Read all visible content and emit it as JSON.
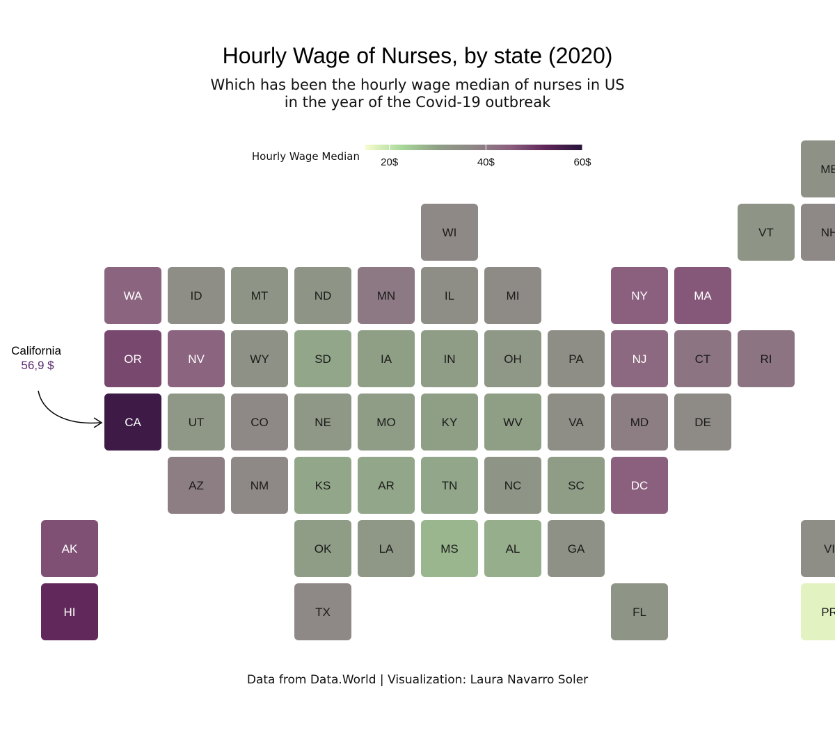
{
  "title": "Hourly Wage of Nurses, by state (2020)",
  "subtitle_line1": "Which has been the hourly wage median of nurses in US",
  "subtitle_line2": "in the year of the Covid-19 outbreak",
  "caption": "Data from Data.World | Visualization: Laura Navarro Soler",
  "legend": {
    "title": "Hourly Wage Median",
    "ticks": [
      {
        "value": 20,
        "label": "20$"
      },
      {
        "value": 40,
        "label": "40$"
      },
      {
        "value": 60,
        "label": "60$"
      }
    ],
    "range": [
      15,
      60
    ],
    "colors": [
      "#f7fccf",
      "#a8d89a",
      "#8f9f86",
      "#8e8686",
      "#8b5f7e",
      "#5e2558",
      "#26143a"
    ]
  },
  "annotation": {
    "label": "California",
    "value": "56,9 $",
    "value_color": "#5b2a6e"
  },
  "chart_data": {
    "type": "heatmap",
    "title": "Hourly Wage of Nurses, by state (2020)",
    "value_unit": "$ per hour",
    "tiles": [
      {
        "state": "ME",
        "col": 12,
        "row": 0,
        "value": 34
      },
      {
        "state": "WI",
        "col": 6,
        "row": 1,
        "value": 37
      },
      {
        "state": "VT",
        "col": 11,
        "row": 1,
        "value": 33
      },
      {
        "state": "NH",
        "col": 12,
        "row": 1,
        "value": 37
      },
      {
        "state": "WA",
        "col": 1,
        "row": 2,
        "value": 44
      },
      {
        "state": "ID",
        "col": 2,
        "row": 2,
        "value": 35
      },
      {
        "state": "MT",
        "col": 3,
        "row": 2,
        "value": 33
      },
      {
        "state": "ND",
        "col": 4,
        "row": 2,
        "value": 33
      },
      {
        "state": "MN",
        "col": 5,
        "row": 2,
        "value": 40
      },
      {
        "state": "IL",
        "col": 6,
        "row": 2,
        "value": 35
      },
      {
        "state": "MI",
        "col": 7,
        "row": 2,
        "value": 36
      },
      {
        "state": "NY",
        "col": 9,
        "row": 2,
        "value": 45
      },
      {
        "state": "MA",
        "col": 10,
        "row": 2,
        "value": 46
      },
      {
        "state": "OR",
        "col": 1,
        "row": 3,
        "value": 48
      },
      {
        "state": "NV",
        "col": 2,
        "row": 3,
        "value": 44
      },
      {
        "state": "WY",
        "col": 3,
        "row": 3,
        "value": 34
      },
      {
        "state": "SD",
        "col": 4,
        "row": 3,
        "value": 29
      },
      {
        "state": "IA",
        "col": 5,
        "row": 3,
        "value": 30
      },
      {
        "state": "IN",
        "col": 6,
        "row": 3,
        "value": 31
      },
      {
        "state": "OH",
        "col": 7,
        "row": 3,
        "value": 32
      },
      {
        "state": "PA",
        "col": 8,
        "row": 3,
        "value": 35
      },
      {
        "state": "NJ",
        "col": 9,
        "row": 3,
        "value": 43
      },
      {
        "state": "CT",
        "col": 10,
        "row": 3,
        "value": 41
      },
      {
        "state": "RI",
        "col": 11,
        "row": 3,
        "value": 41
      },
      {
        "state": "CA",
        "col": 1,
        "row": 4,
        "value": 56.9
      },
      {
        "state": "UT",
        "col": 2,
        "row": 4,
        "value": 32
      },
      {
        "state": "CO",
        "col": 3,
        "row": 4,
        "value": 37
      },
      {
        "state": "NE",
        "col": 4,
        "row": 4,
        "value": 32
      },
      {
        "state": "MO",
        "col": 5,
        "row": 4,
        "value": 31
      },
      {
        "state": "KY",
        "col": 6,
        "row": 4,
        "value": 30
      },
      {
        "state": "WV",
        "col": 7,
        "row": 4,
        "value": 30
      },
      {
        "state": "VA",
        "col": 8,
        "row": 4,
        "value": 35
      },
      {
        "state": "MD",
        "col": 9,
        "row": 4,
        "value": 39
      },
      {
        "state": "DE",
        "col": 10,
        "row": 4,
        "value": 36
      },
      {
        "state": "AZ",
        "col": 2,
        "row": 5,
        "value": 39
      },
      {
        "state": "NM",
        "col": 3,
        "row": 5,
        "value": 37
      },
      {
        "state": "KS",
        "col": 4,
        "row": 5,
        "value": 29
      },
      {
        "state": "AR",
        "col": 5,
        "row": 5,
        "value": 29
      },
      {
        "state": "TN",
        "col": 6,
        "row": 5,
        "value": 29
      },
      {
        "state": "NC",
        "col": 7,
        "row": 5,
        "value": 33
      },
      {
        "state": "SC",
        "col": 8,
        "row": 5,
        "value": 31
      },
      {
        "state": "DC",
        "col": 9,
        "row": 5,
        "value": 45
      },
      {
        "state": "AK",
        "col": 0,
        "row": 6,
        "value": 47
      },
      {
        "state": "OK",
        "col": 4,
        "row": 6,
        "value": 31
      },
      {
        "state": "LA",
        "col": 5,
        "row": 6,
        "value": 32
      },
      {
        "state": "MS",
        "col": 6,
        "row": 6,
        "value": 27
      },
      {
        "state": "AL",
        "col": 7,
        "row": 6,
        "value": 28
      },
      {
        "state": "GA",
        "col": 8,
        "row": 6,
        "value": 34
      },
      {
        "state": "VI",
        "col": 12,
        "row": 6,
        "value": 35
      },
      {
        "state": "HI",
        "col": 0,
        "row": 7,
        "value": 52
      },
      {
        "state": "TX",
        "col": 4,
        "row": 7,
        "value": 37
      },
      {
        "state": "FL",
        "col": 9,
        "row": 7,
        "value": 33
      },
      {
        "state": "PR",
        "col": 12,
        "row": 7,
        "value": 17
      }
    ]
  }
}
